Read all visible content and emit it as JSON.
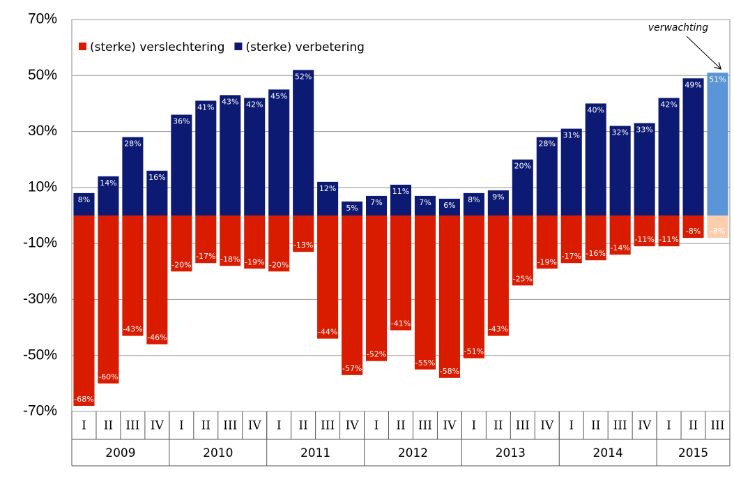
{
  "chart_data": {
    "type": "bar",
    "years": [
      {
        "label": "2009",
        "quarters": [
          "I",
          "II",
          "III",
          "IV"
        ]
      },
      {
        "label": "2010",
        "quarters": [
          "I",
          "II",
          "III",
          "IV"
        ]
      },
      {
        "label": "2011",
        "quarters": [
          "I",
          "II",
          "III",
          "IV"
        ]
      },
      {
        "label": "2012",
        "quarters": [
          "I",
          "II",
          "III",
          "IV"
        ]
      },
      {
        "label": "2013",
        "quarters": [
          "I",
          "II",
          "III",
          "IV"
        ]
      },
      {
        "label": "2014",
        "quarters": [
          "I",
          "II",
          "III",
          "IV"
        ]
      },
      {
        "label": "2015",
        "quarters": [
          "I",
          "II",
          "III"
        ]
      }
    ],
    "series": [
      {
        "name": "(sterke) verslechtering",
        "color": "#d91c00",
        "forecast_color": "#fbcfae",
        "values": [
          -68,
          -60,
          -43,
          -46,
          -20,
          -17,
          -18,
          -19,
          -20,
          -13,
          -44,
          -57,
          -52,
          -41,
          -55,
          -58,
          -51,
          -43,
          -25,
          -19,
          -17,
          -16,
          -14,
          -11,
          -11,
          -8,
          -8
        ],
        "value_labels": [
          "-68%",
          "-60%",
          "-43%",
          "-46%",
          "-20%",
          "-17%",
          "-18%",
          "-19%",
          "-20%",
          "-13%",
          "-44%",
          "-57%",
          "-52%",
          "-41%",
          "-55%",
          "-58%",
          "-51%",
          "-43%",
          "-25%",
          "-19%",
          "-17%",
          "-16%",
          "-14%",
          "-11%",
          "-11%",
          "-8%",
          "-8%"
        ]
      },
      {
        "name": "(sterke) verbetering",
        "color": "#0d1a73",
        "forecast_color": "#5b95d8",
        "values": [
          8,
          14,
          28,
          16,
          36,
          41,
          43,
          42,
          45,
          52,
          12,
          5,
          7,
          11,
          7,
          6,
          8,
          9,
          20,
          28,
          31,
          40,
          32,
          33,
          42,
          49,
          51
        ],
        "value_labels": [
          "8%",
          "14%",
          "28%",
          "16%",
          "36%",
          "41%",
          "43%",
          "42%",
          "45%",
          "52%",
          "12%",
          "5%",
          "7%",
          "11%",
          "7%",
          "6%",
          "8%",
          "9%",
          "20%",
          "28%",
          "31%",
          "40%",
          "32%",
          "33%",
          "42%",
          "49%",
          "51%"
        ]
      }
    ],
    "annotation": "verwachting",
    "ylim": [
      -70,
      70
    ],
    "yticks": [
      {
        "value": -70,
        "label": "-70%"
      },
      {
        "value": -50,
        "label": "-50%"
      },
      {
        "value": -30,
        "label": "-30%"
      },
      {
        "value": -10,
        "label": "-10%"
      },
      {
        "value": 10,
        "label": "10%"
      },
      {
        "value": 30,
        "label": "30%"
      },
      {
        "value": 50,
        "label": "50%"
      },
      {
        "value": 70,
        "label": "70%"
      }
    ],
    "grid": true
  }
}
